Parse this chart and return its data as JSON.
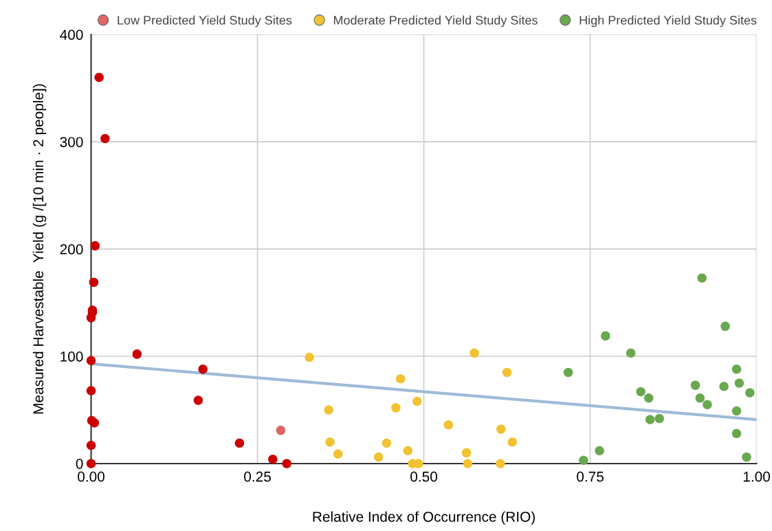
{
  "chart_data": {
    "type": "scatter",
    "xlabel": "Relative Index of Occurrence (RIO)",
    "ylabel": "Measured Harvestable  Yield (g /[10 min · 2 people])",
    "xlim": [
      0,
      1
    ],
    "ylim": [
      0,
      400
    ],
    "xticks": [
      {
        "value": 0,
        "label": "0.00"
      },
      {
        "value": 0.25,
        "label": "0.25"
      },
      {
        "value": 0.5,
        "label": "0.50"
      },
      {
        "value": 0.75,
        "label": "0.75"
      },
      {
        "value": 1,
        "label": "1.00"
      }
    ],
    "yticks": [
      0,
      100,
      200,
      300,
      400
    ],
    "grid": true,
    "legend": "top",
    "marker": "circle",
    "series": [
      {
        "name": "Low Predicted Yield Study Sites",
        "color": "#e06666",
        "x": [
          0.012,
          0.021,
          0.006,
          0.004,
          0.002,
          0.002,
          0.0,
          0.0,
          0.069,
          0.168,
          0.161,
          0.0,
          0.001,
          0.005,
          0.0,
          0.223,
          0.273,
          0.294,
          0.0,
          0.285
        ],
        "values": [
          360,
          303,
          203,
          169,
          143,
          141,
          136,
          96,
          102,
          88,
          59,
          68,
          40,
          38,
          17,
          19,
          4,
          0,
          0,
          31
        ],
        "colors": [
          "#cc0000",
          "#cc0000",
          "#cc0000",
          "#cc0000",
          "#cc0000",
          "#cc0000",
          "#cc0000",
          "#cc0000",
          "#cc0000",
          "#cc0000",
          "#cc0000",
          "#cc0000",
          "#cc0000",
          "#cc0000",
          "#cc0000",
          "#cc0000",
          "#cc0000",
          "#cc0000",
          "#cc0000",
          "#e06666"
        ]
      },
      {
        "name": "Moderate Predicted Yield Study Sites",
        "color": "#f1c232",
        "x": [
          0.328,
          0.465,
          0.576,
          0.625,
          0.357,
          0.458,
          0.49,
          0.537,
          0.359,
          0.371,
          0.432,
          0.444,
          0.476,
          0.483,
          0.492,
          0.616,
          0.633,
          0.564,
          0.566,
          0.615
        ],
        "values": [
          99,
          79,
          103,
          85,
          50,
          52,
          58,
          36,
          20,
          9,
          6,
          19,
          12,
          0,
          0,
          32,
          20,
          10,
          0,
          0
        ]
      },
      {
        "name": "High Predicted Yield Study Sites",
        "color": "#6aa84f",
        "x": [
          0.918,
          0.953,
          0.773,
          0.811,
          0.717,
          0.97,
          0.908,
          0.951,
          0.974,
          0.99,
          0.826,
          0.838,
          0.915,
          0.926,
          0.97,
          0.84,
          0.854,
          0.97,
          0.764,
          0.74,
          0.985
        ],
        "values": [
          173,
          128,
          119,
          103,
          85,
          88,
          73,
          72,
          75,
          66,
          67,
          61,
          61,
          55,
          49,
          41,
          42,
          28,
          12,
          3,
          6
        ]
      },
      {
        "type": "line",
        "marker": "none",
        "color": "#9fbbd8",
        "x": [
          0,
          1
        ],
        "values": [
          93,
          41
        ]
      }
    ]
  }
}
